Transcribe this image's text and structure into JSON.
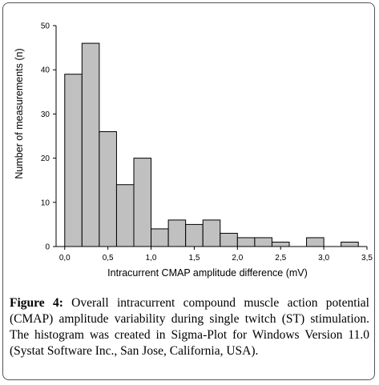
{
  "chart_data": {
    "type": "bar",
    "xlabel": "Intracurrent CMAP amplitude difference (mV)",
    "ylabel": "Number of measurements (n)",
    "xlim": [
      -0.1,
      3.5
    ],
    "ylim": [
      0,
      50
    ],
    "xticks": [
      "0,0",
      "0,5",
      "1,0",
      "1,5",
      "2,0",
      "2,5",
      "3,0",
      "3,5"
    ],
    "yticks": [
      "0",
      "10",
      "20",
      "30",
      "40",
      "50"
    ],
    "bin_width": 0.2,
    "bins": [
      {
        "x": 0.0,
        "value": 39
      },
      {
        "x": 0.2,
        "value": 46
      },
      {
        "x": 0.4,
        "value": 26
      },
      {
        "x": 0.6,
        "value": 14
      },
      {
        "x": 0.8,
        "value": 20
      },
      {
        "x": 1.0,
        "value": 4
      },
      {
        "x": 1.2,
        "value": 6
      },
      {
        "x": 1.4,
        "value": 5
      },
      {
        "x": 1.6,
        "value": 6
      },
      {
        "x": 1.8,
        "value": 3
      },
      {
        "x": 2.0,
        "value": 2
      },
      {
        "x": 2.2,
        "value": 2
      },
      {
        "x": 2.4,
        "value": 1
      },
      {
        "x": 2.8,
        "value": 2
      },
      {
        "x": 3.2,
        "value": 1
      }
    ],
    "bar_color": "#c0c0c0",
    "bar_edge_color": "#000000",
    "grid": false
  },
  "caption": {
    "label": "Figure 4:",
    "text": " Overall intracurrent compound muscle action potential (CMAP) amplitude variability during single twitch (ST) stimulation. The histogram was created in Sigma-Plot for Windows Version 11.0 (Systat Software Inc., San Jose, California, USA)."
  }
}
